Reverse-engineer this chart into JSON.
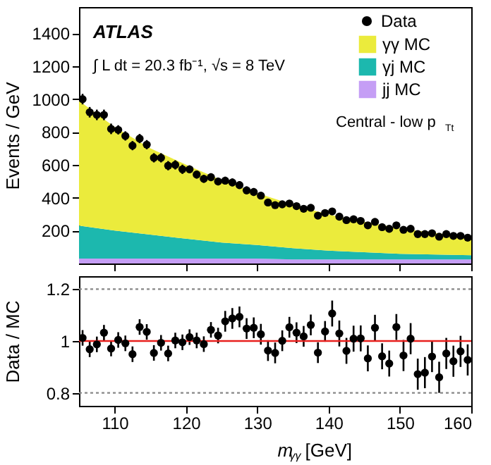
{
  "chart_data": [
    {
      "type": "area",
      "stacked": true,
      "ylabel": "Events / GeV",
      "xlim": [
        105,
        160
      ],
      "xticks": [
        110,
        120,
        130,
        140,
        150,
        160
      ],
      "ylim": [
        0,
        1560
      ],
      "yticks": [
        200,
        400,
        600,
        800,
        1000,
        1200,
        1400
      ],
      "tick_labels": "y",
      "legend": "top right",
      "annotations": [
        "ATLAS",
        "∫ L dt = 20.3 fb⁻¹, √s = 8 TeV",
        "Central - low p$_{Tt}$"
      ],
      "series": [
        {
          "name": "jj MC",
          "color": "#c59ef5",
          "x": [
            105,
            110,
            115,
            120,
            125,
            130,
            135,
            140,
            145,
            150,
            155,
            160
          ],
          "values": [
            30,
            30,
            30,
            30,
            30,
            30,
            25,
            25,
            25,
            25,
            25,
            25
          ]
        },
        {
          "name": "γj MC",
          "color": "#1cb8ae",
          "x": [
            105,
            110,
            115,
            120,
            125,
            130,
            135,
            140,
            145,
            150,
            155,
            160
          ],
          "values": [
            200,
            170,
            146,
            121,
            97,
            82,
            68,
            53,
            44,
            34,
            30,
            25
          ]
        },
        {
          "name": "γγ MC",
          "color": "#ebeb3c",
          "x": [
            105,
            110,
            115,
            120,
            125,
            130,
            135,
            140,
            145,
            150,
            155,
            160
          ],
          "values": [
            760,
            630,
            525,
            450,
            380,
            315,
            265,
            220,
            185,
            155,
            130,
            110
          ]
        },
        {
          "name": "Data",
          "type": "scatter",
          "marker": "circle",
          "color": "#000000",
          "x": [
            105.5,
            106.5,
            107.5,
            108.5,
            109.5,
            110.5,
            111.5,
            112.5,
            113.5,
            114.5,
            115.5,
            116.5,
            117.5,
            118.5,
            119.5,
            120.5,
            121.5,
            122.5,
            123.5,
            124.5,
            125.5,
            126.5,
            127.5,
            128.5,
            129.5,
            130.5,
            131.5,
            132.5,
            133.5,
            134.5,
            135.5,
            136.5,
            137.5,
            138.5,
            139.5,
            140.5,
            141.5,
            142.5,
            143.5,
            144.5,
            145.5,
            146.5,
            147.5,
            148.5,
            149.5,
            150.5,
            151.5,
            152.5,
            153.5,
            154.5,
            155.5,
            156.5,
            157.5,
            158.5,
            159.5
          ],
          "values": [
            1000,
            920,
            904,
            904,
            819,
            813,
            776,
            717,
            760,
            723,
            643,
            643,
            595,
            600,
            573,
            573,
            541,
            515,
            525,
            499,
            504,
            493,
            477,
            445,
            435,
            413,
            371,
            355,
            360,
            365,
            349,
            333,
            339,
            291,
            307,
            317,
            285,
            264,
            269,
            259,
            232,
            253,
            221,
            211,
            232,
            205,
            211,
            179,
            179,
            184,
            163,
            179,
            168,
            168,
            157
          ],
          "errors": [
            32,
            32,
            32,
            32,
            32,
            28,
            28,
            28,
            28,
            28,
            28,
            28,
            28,
            28,
            28,
            24,
            24,
            24,
            24,
            24,
            24,
            24,
            24,
            24,
            24,
            20,
            20,
            20,
            20,
            20,
            20,
            20,
            20,
            20,
            20,
            18,
            18,
            18,
            18,
            18,
            18,
            18,
            18,
            18,
            18,
            15,
            15,
            15,
            15,
            15,
            15,
            15,
            15,
            15,
            15
          ]
        }
      ]
    },
    {
      "type": "scatter",
      "ylabel": "Data / MC",
      "xlabel": "m$_{γγ}$ [GeV]",
      "xlim": [
        105,
        160
      ],
      "xticks": [
        110,
        120,
        130,
        140,
        150,
        160
      ],
      "ylim": [
        0.75,
        1.25
      ],
      "yticks": [
        0.8,
        1,
        1.2
      ],
      "marker": "circle",
      "color": "#000000",
      "x": [
        105.5,
        106.5,
        107.5,
        108.5,
        109.5,
        110.5,
        111.5,
        112.5,
        113.5,
        114.5,
        115.5,
        116.5,
        117.5,
        118.5,
        119.5,
        120.5,
        121.5,
        122.5,
        123.5,
        124.5,
        125.5,
        126.5,
        127.5,
        128.5,
        129.5,
        130.5,
        131.5,
        132.5,
        133.5,
        134.5,
        135.5,
        136.5,
        137.5,
        138.5,
        139.5,
        140.5,
        141.5,
        142.5,
        143.5,
        144.5,
        145.5,
        146.5,
        147.5,
        148.5,
        149.5,
        150.5,
        151.5,
        152.5,
        153.5,
        154.5,
        155.5,
        156.5,
        157.5,
        158.5,
        159.5
      ],
      "values": [
        1.012,
        0.968,
        0.987,
        1.032,
        0.971,
        1.004,
        0.991,
        0.949,
        1.054,
        1.035,
        0.954,
        0.993,
        0.952,
        1.002,
        0.995,
        1.015,
        1.002,
        0.988,
        1.043,
        1.021,
        1.076,
        1.087,
        1.093,
        1.048,
        1.051,
        1.026,
        0.963,
        0.954,
        1.001,
        1.053,
        1.032,
        1.018,
        1.062,
        0.955,
        1.037,
        1.106,
        1.029,
        0.962,
        1.009,
        1.01,
        0.933,
        1.051,
        0.941,
        0.913,
        1.054,
        0.944,
        1.009,
        0.872,
        0.878,
        0.94,
        0.86,
        0.952,
        0.922,
        0.96,
        0.927
      ],
      "errors": [
        0.03,
        0.03,
        0.03,
        0.03,
        0.03,
        0.03,
        0.03,
        0.03,
        0.03,
        0.03,
        0.03,
        0.03,
        0.03,
        0.03,
        0.03,
        0.03,
        0.03,
        0.03,
        0.03,
        0.03,
        0.04,
        0.04,
        0.04,
        0.04,
        0.04,
        0.04,
        0.04,
        0.04,
        0.04,
        0.04,
        0.04,
        0.04,
        0.04,
        0.04,
        0.04,
        0.05,
        0.05,
        0.05,
        0.05,
        0.05,
        0.05,
        0.05,
        0.05,
        0.05,
        0.05,
        0.06,
        0.06,
        0.06,
        0.06,
        0.06,
        0.06,
        0.06,
        0.06,
        0.06,
        0.06
      ],
      "ref_lines": [
        {
          "axis": "y",
          "value": 1,
          "color": "#e8201e",
          "line_style": "solid"
        },
        {
          "axis": "y",
          "value": 0.8,
          "color": "#888888",
          "line_style": "dotted"
        },
        {
          "axis": "y",
          "value": 1.2,
          "color": "#888888",
          "line_style": "dotted"
        }
      ]
    }
  ]
}
